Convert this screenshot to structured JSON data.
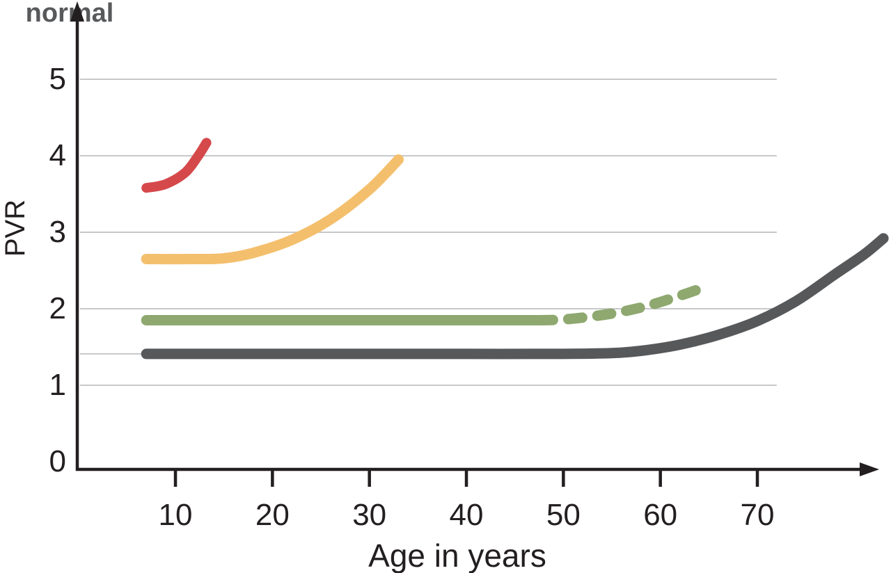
{
  "figure": {
    "background": "#ffffff",
    "axis_color": "#231f20",
    "text_color": "#231f20",
    "gridline_color": "#c7c8ca"
  },
  "chart_data": {
    "type": "line",
    "title": "",
    "xlabel": "Age in years",
    "ylabel": "PVR",
    "x_ticks": [
      10,
      20,
      30,
      40,
      50,
      60,
      70
    ],
    "y_ticks": [
      5,
      4,
      3,
      2,
      1,
      0
    ],
    "xlim": [
      0,
      83
    ],
    "ylim": [
      0,
      6
    ],
    "legend": "none",
    "grid": {
      "horizontal_at": [
        1,
        2,
        3,
        4,
        5
      ],
      "age_start": 0.15,
      "age_end": 72,
      "color": "#c7c8ca"
    },
    "extra_line": {
      "pvr": 1.41,
      "age_start": 0.15,
      "age_end": 7.3,
      "color": "#c7c8ca"
    },
    "series": [
      {
        "id": "red-curve",
        "label": "",
        "color": "#d5494b",
        "line_style": "solid",
        "stroke_width": 14,
        "points": [
          [
            7,
            3.58
          ],
          [
            9,
            3.63
          ],
          [
            11,
            3.78
          ],
          [
            12.3,
            3.99
          ],
          [
            13.2,
            4.17
          ]
        ]
      },
      {
        "id": "yellow-curve",
        "label": "",
        "color": "#f4bf6d",
        "line_style": "solid",
        "stroke_width": 15,
        "points": [
          [
            7,
            2.65
          ],
          [
            12,
            2.65
          ],
          [
            15,
            2.66
          ],
          [
            18,
            2.73
          ],
          [
            22,
            2.9
          ],
          [
            26,
            3.17
          ],
          [
            30,
            3.56
          ],
          [
            33,
            3.95
          ]
        ]
      },
      {
        "id": "green-curve-solid",
        "label": "",
        "color": "#8ea86f",
        "line_style": "solid",
        "stroke_width": 15,
        "points": [
          [
            7,
            1.85
          ],
          [
            20,
            1.85
          ],
          [
            30,
            1.85
          ],
          [
            40,
            1.85
          ],
          [
            47.5,
            1.85
          ]
        ]
      },
      {
        "id": "green-curve-dashed",
        "label": "",
        "color": "#8ea86f",
        "line_style": "dashed",
        "stroke_width": 15,
        "points": [
          [
            47.5,
            1.85
          ],
          [
            50,
            1.86
          ],
          [
            53,
            1.9
          ],
          [
            56,
            1.96
          ],
          [
            59,
            2.05
          ],
          [
            62,
            2.17
          ],
          [
            64.3,
            2.27
          ]
        ]
      },
      {
        "id": "normal-curve",
        "label": "normal",
        "color": "#57585a",
        "line_style": "solid",
        "stroke_width": 15,
        "points": [
          [
            7,
            1.41
          ],
          [
            20,
            1.41
          ],
          [
            30,
            1.41
          ],
          [
            40,
            1.41
          ],
          [
            50,
            1.41
          ],
          [
            55,
            1.42
          ],
          [
            58,
            1.45
          ],
          [
            62,
            1.53
          ],
          [
            66,
            1.66
          ],
          [
            70,
            1.84
          ],
          [
            74,
            2.1
          ],
          [
            78,
            2.45
          ],
          [
            81,
            2.71
          ],
          [
            83,
            2.92
          ]
        ]
      }
    ],
    "annotations": [
      {
        "text": "normal",
        "color": "#58595b",
        "age": 77.5,
        "pvr": 3.35
      }
    ]
  }
}
